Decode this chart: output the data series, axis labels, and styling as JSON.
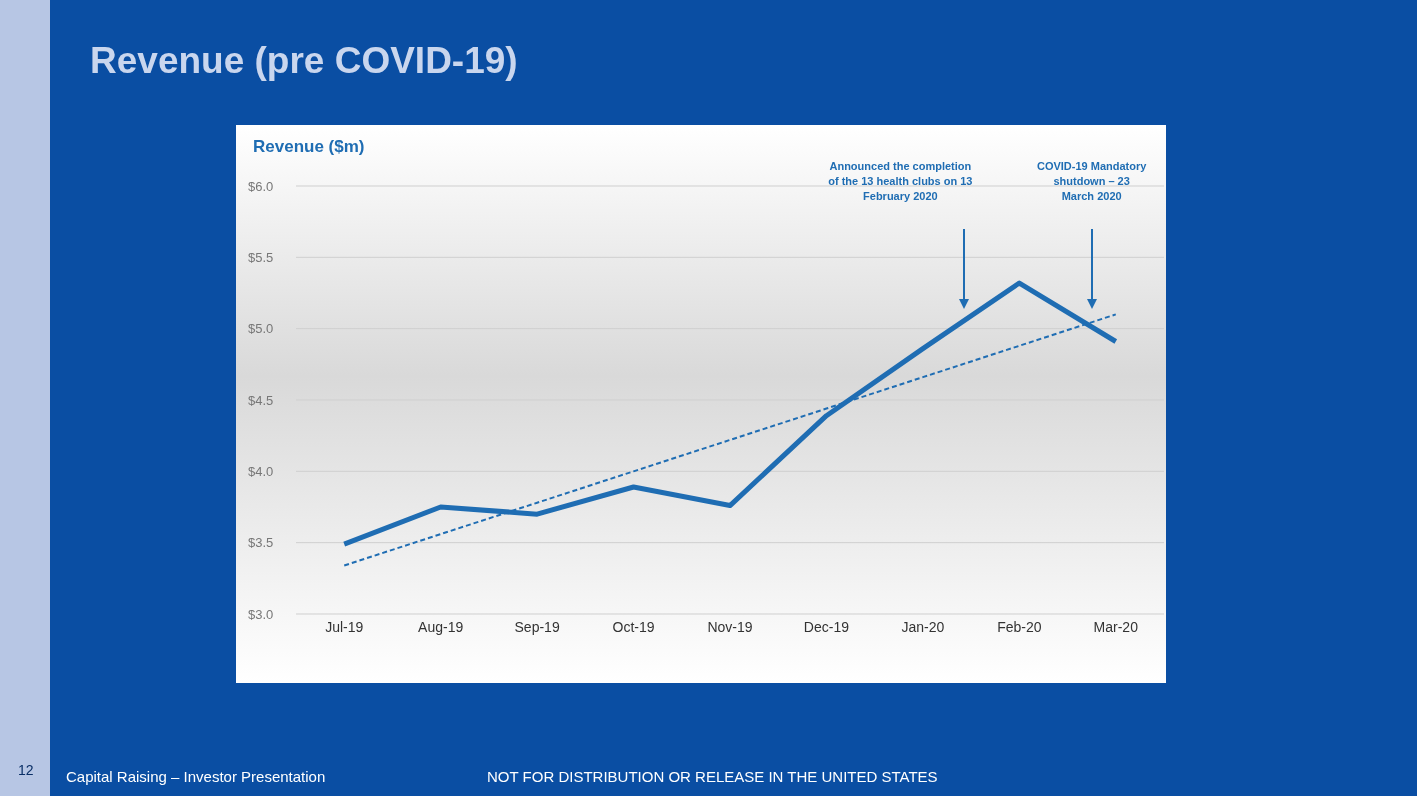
{
  "chart_data": {
    "type": "line",
    "title": "Revenue (pre COVID-19)",
    "ylabel": "Revenue ($m)",
    "categories": [
      "Jul-19",
      "Aug-19",
      "Sep-19",
      "Oct-19",
      "Nov-19",
      "Dec-19",
      "Jan-20",
      "Feb-20",
      "Mar-20"
    ],
    "series": [
      {
        "color": "#1f6db3",
        "line_style": "solid",
        "values": [
          3.49,
          3.75,
          3.7,
          3.89,
          3.76,
          4.39,
          4.86,
          5.32,
          4.91
        ]
      },
      {
        "color": "#1f6db3",
        "line_style": "dashed",
        "values": [
          3.34,
          3.56,
          3.78,
          4.0,
          4.22,
          4.44,
          4.66,
          4.88,
          5.1
        ]
      }
    ],
    "ylim": [
      3.0,
      6.0
    ],
    "yticks": [
      {
        "value": 3.0,
        "label": "$3.0"
      },
      {
        "value": 3.5,
        "label": "$3.5"
      },
      {
        "value": 4.0,
        "label": "$4.0"
      },
      {
        "value": 4.5,
        "label": "$4.5"
      },
      {
        "value": 5.0,
        "label": "$5.0"
      },
      {
        "value": 5.5,
        "label": "$5.5"
      },
      {
        "value": 6.0,
        "label": "$6.0"
      }
    ],
    "grid": "y",
    "legend": false,
    "marker": "none",
    "annotations": [
      "Announced the completion of the 13 health clubs on 13 February 2020",
      "COVID-19 Mandatory shutdown – 23 March 2020",
      "Capital Raising – Investor Presentation",
      "NOT FOR DISTRIBUTION OR RELEASE IN THE UNITED STATES",
      "12"
    ]
  }
}
